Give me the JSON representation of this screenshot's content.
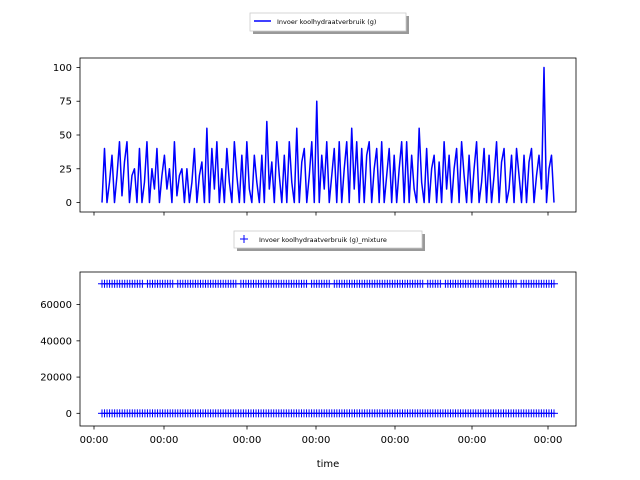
{
  "chart_data": [
    {
      "type": "line",
      "legend": {
        "label": "Invoer koolhydraatverbruik (g)",
        "placement": "top-center"
      },
      "series": [
        {
          "name": "Invoer koolhydraatverbruik (g)",
          "color": "#0000ff",
          "values": [
            0,
            40,
            0,
            15,
            35,
            0,
            20,
            45,
            5,
            30,
            45,
            0,
            20,
            25,
            0,
            40,
            0,
            15,
            45,
            0,
            25,
            10,
            40,
            0,
            20,
            35,
            10,
            25,
            0,
            45,
            5,
            20,
            25,
            0,
            25,
            0,
            15,
            40,
            0,
            20,
            30,
            0,
            55,
            0,
            40,
            10,
            45,
            0,
            25,
            0,
            40,
            15,
            0,
            45,
            20,
            0,
            35,
            0,
            45,
            10,
            0,
            35,
            15,
            0,
            35,
            0,
            60,
            10,
            30,
            0,
            45,
            20,
            0,
            35,
            0,
            45,
            15,
            0,
            55,
            0,
            30,
            40,
            0,
            20,
            45,
            0,
            75,
            0,
            35,
            10,
            45,
            0,
            20,
            40,
            0,
            45,
            0,
            25,
            45,
            0,
            55,
            10,
            45,
            0,
            40,
            0,
            35,
            45,
            0,
            25,
            40,
            0,
            45,
            0,
            20,
            40,
            0,
            35,
            0,
            25,
            45,
            0,
            45,
            0,
            35,
            10,
            0,
            55,
            15,
            0,
            40,
            0,
            25,
            35,
            0,
            30,
            0,
            45,
            10,
            35,
            0,
            25,
            40,
            0,
            45,
            20,
            0,
            35,
            0,
            25,
            45,
            0,
            15,
            40,
            0,
            35,
            0,
            20,
            45,
            0,
            30,
            40,
            0,
            10,
            35,
            0,
            40,
            20,
            0,
            35,
            0,
            30,
            40,
            0,
            20,
            35,
            10,
            100,
            0,
            25,
            35,
            0
          ],
          "range": [
            0,
            100
          ]
        }
      ],
      "yticks": [
        "0",
        "25",
        "50",
        "75",
        "100"
      ],
      "ylim": [
        -7,
        107
      ],
      "grid": false
    },
    {
      "type": "scatter",
      "marker": "+",
      "legend": {
        "label": "Invoer koolhydraatverbruik (g)_mixture",
        "placement": "top-center"
      },
      "series": [
        {
          "name": "Invoer koolhydraatverbruik (g)_mixture",
          "color": "#0000ff",
          "levels": [
            0,
            71500
          ],
          "count": 180
        }
      ],
      "yticks": [
        "0",
        "20000",
        "40000",
        "60000"
      ],
      "ylim": [
        -7000,
        78000
      ],
      "xlabel": "time",
      "xticks": [
        "00:00",
        "00:00",
        "00:00",
        "00:00",
        "00:00",
        "00:00",
        "00:00"
      ],
      "grid": false
    }
  ]
}
